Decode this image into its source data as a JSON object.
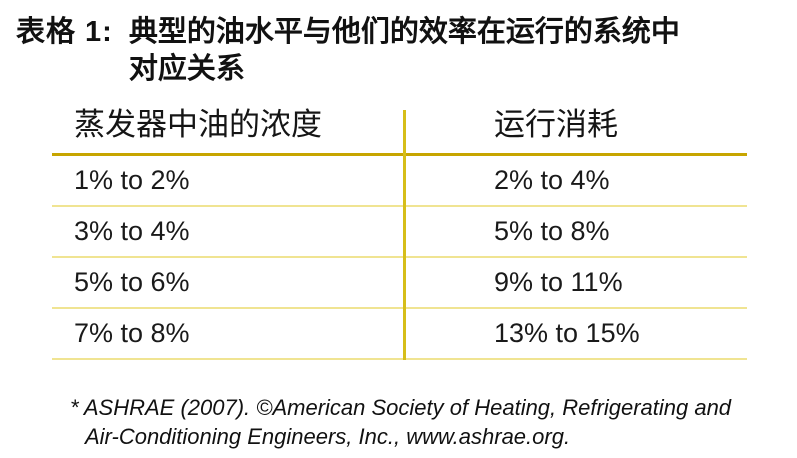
{
  "caption": {
    "label": "表格 1:",
    "line1": "典型的油水平与他们的效率在运行的系统中",
    "line2": "对应关系"
  },
  "table": {
    "columns": [
      "蒸发器中油的浓度",
      "运行消耗"
    ],
    "rows": [
      [
        "1% to 2%",
        "2% to 4%"
      ],
      [
        "3% to 4%",
        "5% to 8%"
      ],
      [
        "5% to 6%",
        "9% to 11%"
      ],
      [
        "7% to 8%",
        "13% to 15%"
      ]
    ]
  },
  "footnote": {
    "line1": "* ASHRAE (2007). ©American Society of Heating, Refrigerating and",
    "line2": "Air-Conditioning Engineers, Inc., www.ashrae.org."
  },
  "colors": {
    "header_rule": "#c7a500",
    "column_divider": "#d6be19",
    "row_rule": "#f0e492",
    "text": "#1a1a1a"
  }
}
